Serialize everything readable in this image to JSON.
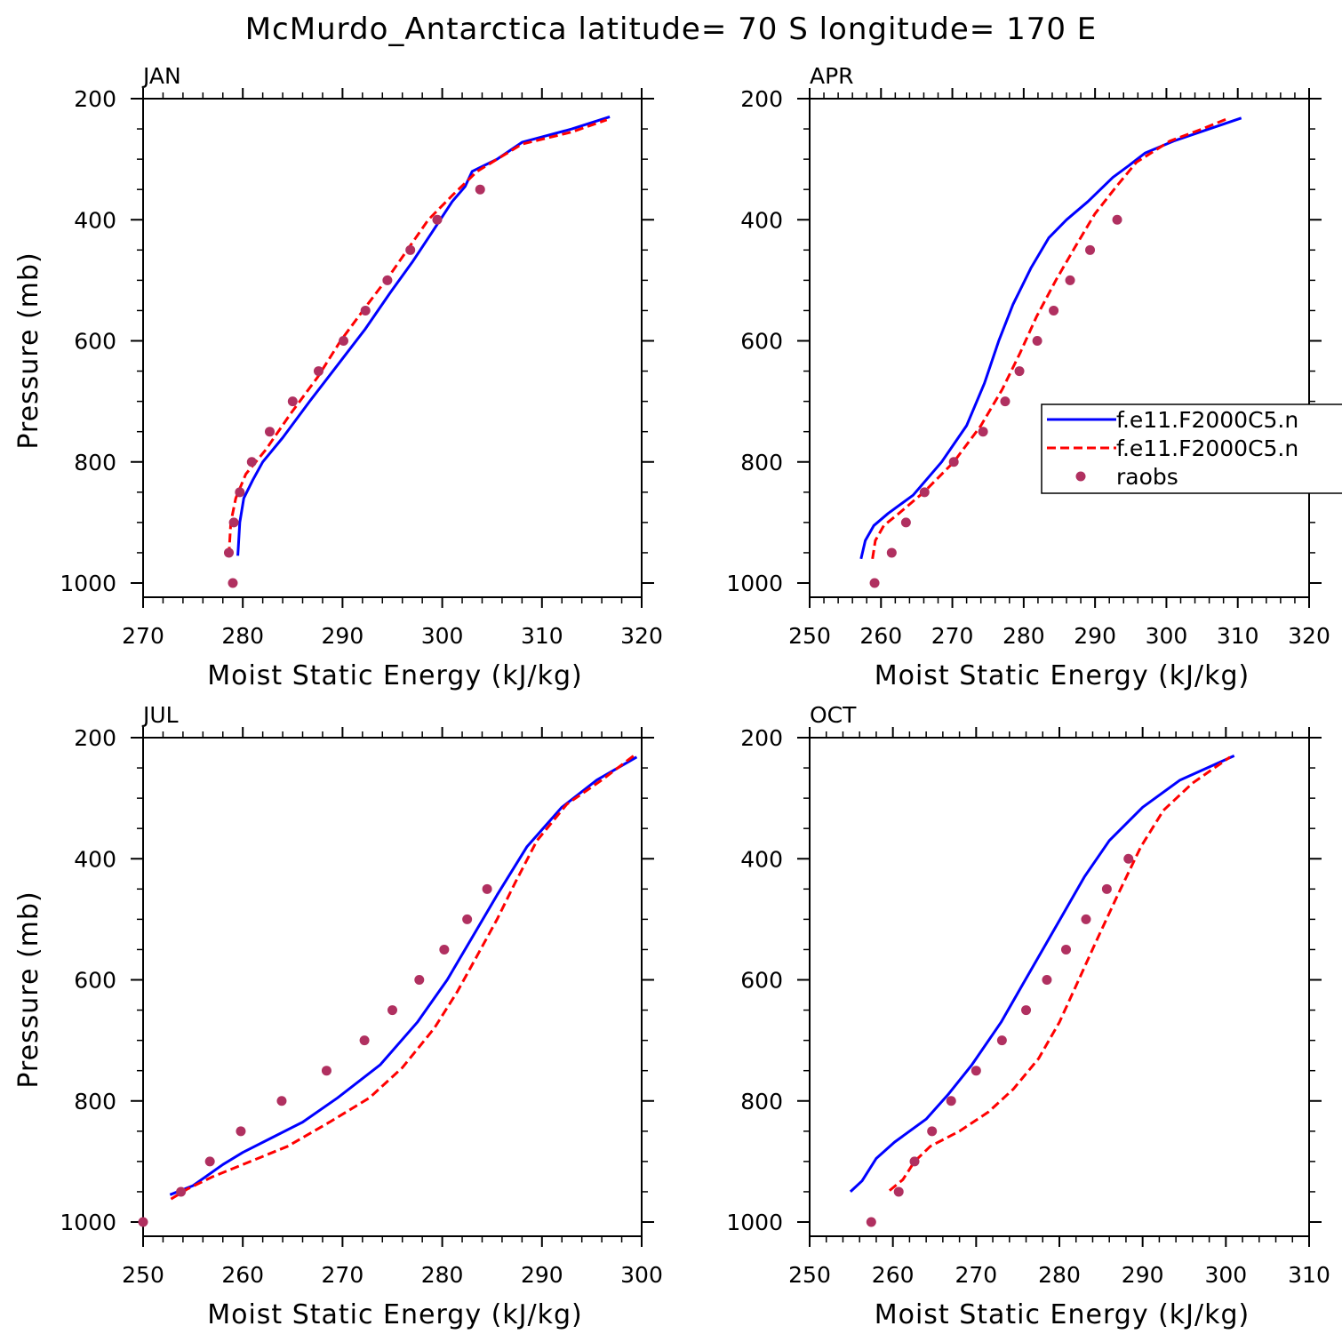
{
  "title": "McMurdo_Antarctica  latitude= 70 S longitude= 170 E",
  "colors": {
    "series_1": "#0000ff",
    "series_2": "#ff0000",
    "raobs": "#b03060"
  },
  "chart_data": [
    {
      "type": "line",
      "panel": "JAN",
      "xlabel": "Moist Static Energy (kJ/kg)",
      "ylabel": "Pressure (mb)",
      "xlim": [
        270,
        320
      ],
      "ylim": [
        1000,
        200
      ],
      "xticks": [
        270,
        280,
        290,
        300,
        310,
        320
      ],
      "yticks": [
        200,
        400,
        600,
        800,
        1000
      ],
      "y_inverted": true,
      "series": [
        {
          "style": "solid",
          "color": "#0000ff",
          "points": [
            [
              279.5,
              955
            ],
            [
              279.7,
              900
            ],
            [
              280.1,
              860
            ],
            [
              281,
              830
            ],
            [
              282,
              800
            ],
            [
              284,
              760
            ],
            [
              286.7,
              700
            ],
            [
              289.5,
              640
            ],
            [
              292.3,
              580
            ],
            [
              294.8,
              520
            ],
            [
              297,
              470
            ],
            [
              299,
              420
            ],
            [
              301,
              370
            ],
            [
              302.3,
              345
            ],
            [
              303,
              320
            ],
            [
              305.5,
              300
            ],
            [
              308,
              272
            ],
            [
              313,
              250
            ],
            [
              316.8,
              230
            ]
          ]
        },
        {
          "style": "dashed",
          "color": "#ff0000",
          "points": [
            [
              278.6,
              955
            ],
            [
              278.8,
              900
            ],
            [
              279.3,
              860
            ],
            [
              280.3,
              820
            ],
            [
              282.3,
              780
            ],
            [
              284.8,
              720
            ],
            [
              287.5,
              660
            ],
            [
              289.8,
              600
            ],
            [
              292.5,
              540
            ],
            [
              294.8,
              490
            ],
            [
              296.7,
              445
            ],
            [
              298.6,
              400
            ],
            [
              301,
              360
            ],
            [
              303.5,
              320
            ],
            [
              308,
              275
            ],
            [
              313,
              255
            ],
            [
              316.5,
              235
            ]
          ]
        }
      ],
      "raobs": [
        [
          279,
          1000
        ],
        [
          278.6,
          950
        ],
        [
          279.1,
          900
        ],
        [
          279.7,
          850
        ],
        [
          280.9,
          800
        ],
        [
          282.7,
          750
        ],
        [
          285,
          700
        ],
        [
          287.6,
          650
        ],
        [
          290.1,
          600
        ],
        [
          292.3,
          550
        ],
        [
          294.5,
          500
        ],
        [
          296.8,
          450
        ],
        [
          299.5,
          400
        ],
        [
          303.8,
          350
        ]
      ]
    },
    {
      "type": "line",
      "panel": "APR",
      "xlabel": "Moist Static Energy (kJ/kg)",
      "ylabel": "",
      "xlim": [
        250,
        320
      ],
      "ylim": [
        1000,
        200
      ],
      "xticks": [
        250,
        260,
        270,
        280,
        290,
        300,
        310,
        320
      ],
      "yticks": [
        200,
        400,
        600,
        800,
        1000
      ],
      "y_inverted": true,
      "series": [
        {
          "style": "solid",
          "color": "#0000ff",
          "points": [
            [
              257.2,
              960
            ],
            [
              257.8,
              930
            ],
            [
              259,
              905
            ],
            [
              261,
              885
            ],
            [
              264.5,
              855
            ],
            [
              268.5,
              800
            ],
            [
              272,
              740
            ],
            [
              274.5,
              670
            ],
            [
              276.5,
              600
            ],
            [
              278.5,
              540
            ],
            [
              281,
              480
            ],
            [
              283.5,
              430
            ],
            [
              286,
              400
            ],
            [
              289,
              370
            ],
            [
              292.5,
              330
            ],
            [
              294.8,
              310
            ],
            [
              297,
              290
            ],
            [
              301,
              270
            ],
            [
              310.5,
              232
            ]
          ]
        },
        {
          "style": "dashed",
          "color": "#ff0000",
          "points": [
            [
              258.8,
              960
            ],
            [
              259.2,
              930
            ],
            [
              260.4,
              905
            ],
            [
              262.5,
              885
            ],
            [
              266,
              850
            ],
            [
              270.2,
              800
            ],
            [
              274,
              740
            ],
            [
              277,
              680
            ],
            [
              279.5,
              620
            ],
            [
              281.8,
              560
            ],
            [
              284.5,
              500
            ],
            [
              287.2,
              445
            ],
            [
              290,
              390
            ],
            [
              293,
              345
            ],
            [
              295.8,
              305
            ],
            [
              300.5,
              270
            ],
            [
              305,
              250
            ],
            [
              308.8,
              232
            ]
          ]
        }
      ],
      "raobs": [
        [
          259.1,
          1000
        ],
        [
          261.5,
          950
        ],
        [
          263.5,
          900
        ],
        [
          266.1,
          850
        ],
        [
          270.2,
          800
        ],
        [
          274.3,
          750
        ],
        [
          277.4,
          700
        ],
        [
          279.4,
          650
        ],
        [
          281.9,
          600
        ],
        [
          284.2,
          550
        ],
        [
          286.5,
          500
        ],
        [
          289.3,
          450
        ],
        [
          293.1,
          400
        ]
      ],
      "legend": {
        "entries": [
          {
            "label": "f.e11.F2000C5.n",
            "style": "solid",
            "color": "#0000ff"
          },
          {
            "label": "f.e11.F2000C5.n",
            "style": "dashed",
            "color": "#ff0000"
          },
          {
            "label": "raobs",
            "style": "marker",
            "color": "#b03060"
          }
        ],
        "placement": "right, partially cut off"
      }
    },
    {
      "type": "line",
      "panel": "JUL",
      "xlabel": "Moist Static Energy (kJ/kg)",
      "ylabel": "Pressure (mb)",
      "xlim": [
        250,
        300
      ],
      "ylim": [
        1000,
        200
      ],
      "xticks": [
        250,
        260,
        270,
        280,
        290,
        300
      ],
      "yticks": [
        200,
        400,
        600,
        800,
        1000
      ],
      "y_inverted": true,
      "series": [
        {
          "style": "solid",
          "color": "#0000ff",
          "points": [
            [
              252.7,
              955
            ],
            [
              255,
              940
            ],
            [
              258,
              905
            ],
            [
              260,
              885
            ],
            [
              263,
              860
            ],
            [
              266,
              835
            ],
            [
              269.5,
              795
            ],
            [
              273.8,
              740
            ],
            [
              277.5,
              670
            ],
            [
              280.5,
              600
            ],
            [
              283,
              530
            ],
            [
              285.5,
              460
            ],
            [
              288.5,
              380
            ],
            [
              292,
              315
            ],
            [
              295.5,
              270
            ],
            [
              299.5,
              232
            ]
          ]
        },
        {
          "style": "dashed",
          "color": "#ff0000",
          "points": [
            [
              252.8,
              962
            ],
            [
              254.5,
              945
            ],
            [
              257,
              925
            ],
            [
              260,
              905
            ],
            [
              264.5,
              875
            ],
            [
              268.7,
              835
            ],
            [
              272.7,
              795
            ],
            [
              276,
              745
            ],
            [
              279.2,
              680
            ],
            [
              281.5,
              620
            ],
            [
              283.5,
              560
            ],
            [
              285.5,
              500
            ],
            [
              287.3,
              440
            ],
            [
              289.5,
              370
            ],
            [
              292.5,
              310
            ],
            [
              296,
              270
            ],
            [
              299.2,
              230
            ]
          ]
        }
      ],
      "raobs": [
        [
          250,
          1000
        ],
        [
          253.8,
          950
        ],
        [
          256.7,
          900
        ],
        [
          259.8,
          850
        ],
        [
          263.9,
          800
        ],
        [
          268.4,
          750
        ],
        [
          272.2,
          700
        ],
        [
          275,
          650
        ],
        [
          277.7,
          600
        ],
        [
          280.2,
          550
        ],
        [
          282.5,
          500
        ],
        [
          284.5,
          450
        ]
      ]
    },
    {
      "type": "line",
      "panel": "OCT",
      "xlabel": "Moist Static Energy (kJ/kg)",
      "ylabel": "",
      "xlim": [
        250,
        310
      ],
      "ylim": [
        1000,
        200
      ],
      "xticks": [
        250,
        260,
        270,
        280,
        290,
        300,
        310
      ],
      "yticks": [
        200,
        400,
        600,
        800,
        1000
      ],
      "y_inverted": true,
      "series": [
        {
          "style": "solid",
          "color": "#0000ff",
          "points": [
            [
              254.9,
              950
            ],
            [
              256.3,
              932
            ],
            [
              258,
              895
            ],
            [
              260.2,
              868
            ],
            [
              264,
              830
            ],
            [
              266.6,
              790
            ],
            [
              269.5,
              740
            ],
            [
              273,
              670
            ],
            [
              275.5,
              610
            ],
            [
              278,
              550
            ],
            [
              280.5,
              490
            ],
            [
              283,
              430
            ],
            [
              286,
              370
            ],
            [
              290,
              315
            ],
            [
              294.5,
              270
            ],
            [
              301,
              230
            ]
          ]
        },
        {
          "style": "dashed",
          "color": "#ff0000",
          "points": [
            [
              259.6,
              948
            ],
            [
              261.2,
              930
            ],
            [
              262.6,
              900
            ],
            [
              264.5,
              875
            ],
            [
              268,
              850
            ],
            [
              271.5,
              818
            ],
            [
              274.5,
              780
            ],
            [
              277.5,
              730
            ],
            [
              280,
              670
            ],
            [
              282,
              610
            ],
            [
              284.3,
              540
            ],
            [
              287,
              460
            ],
            [
              289.8,
              380
            ],
            [
              292.5,
              320
            ],
            [
              296,
              275
            ],
            [
              300.5,
              232
            ]
          ]
        }
      ],
      "raobs": [
        [
          257.4,
          1000
        ],
        [
          260.7,
          950
        ],
        [
          262.6,
          900
        ],
        [
          264.7,
          850
        ],
        [
          267,
          800
        ],
        [
          270,
          750
        ],
        [
          273.1,
          700
        ],
        [
          276,
          650
        ],
        [
          278.5,
          600
        ],
        [
          280.8,
          550
        ],
        [
          283.2,
          500
        ],
        [
          285.7,
          450
        ],
        [
          288.3,
          400
        ]
      ]
    }
  ]
}
